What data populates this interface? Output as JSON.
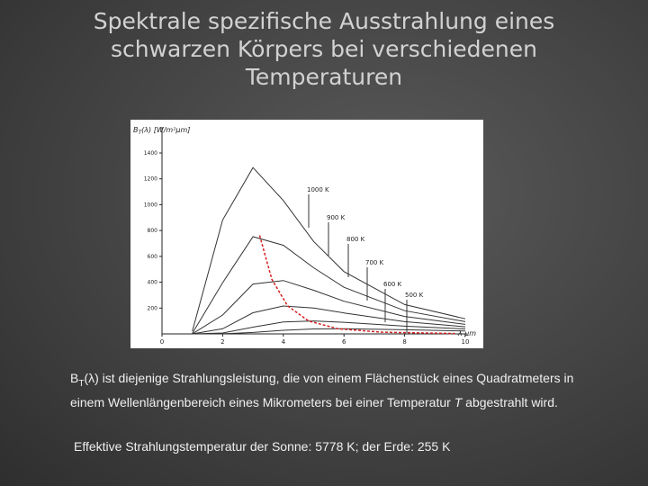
{
  "title": "Spektrale spezifische Ausstrahlung eines schwarzen Körpers bei verschiedenen Temperaturen",
  "chart_data": {
    "type": "line",
    "ylabel": [
      "B",
      "T",
      "(λ)  [W/m²µm]"
    ],
    "xlabel": "λ  µm",
    "x": [
      1,
      2,
      3,
      4,
      5,
      6,
      8,
      10
    ],
    "xlim": [
      0,
      10
    ],
    "xticks": [
      0,
      2,
      4,
      6,
      8,
      10
    ],
    "ylim": [
      0,
      1400
    ],
    "yticks": [
      200,
      400,
      600,
      800,
      1000,
      1200,
      1400
    ],
    "series": [
      {
        "name": "1000 K",
        "color": "#333333",
        "values": [
          21,
          882,
          1287,
          1032,
          715,
          482,
          227,
          117
        ]
      },
      {
        "name": "900 K",
        "color": "#333333",
        "values": [
          4,
          396,
          752,
          686,
          512,
          361,
          180,
          95
        ]
      },
      {
        "name": "800 K",
        "color": "#333333",
        "values": [
          1,
          146,
          386,
          413,
          338,
          253,
          135,
          74
        ]
      },
      {
        "name": "700 K",
        "color": "#333333",
        "values": [
          0,
          40,
          164,
          216,
          200,
          162,
          95,
          55
        ]
      },
      {
        "name": "600 K",
        "color": "#333333",
        "values": [
          0,
          7,
          52,
          92,
          100,
          90,
          60,
          38
        ]
      },
      {
        "name": "500 K",
        "color": "#333333",
        "values": [
          0,
          1,
          11,
          28,
          38,
          40,
          32,
          22
        ]
      }
    ],
    "peak_line": {
      "color": "#d42020",
      "x": [
        3.22,
        3.62,
        4.14,
        4.83,
        5.8,
        7.25,
        9.66
      ],
      "values": [
        762,
        423,
        217,
        100,
        40,
        13,
        3
      ]
    }
  },
  "body": [
    [
      "B",
      "T",
      "(λ) ist diejenige Strahlungsleistung, die von einem Flächenstück eines Quadratmeters in einem Wellenlängenbereich eines Mikrometers bei einer Temperatur ",
      "T",
      " abgestrahlt wird."
    ],
    [
      "Effektive Strahlungstemperatur der Sonne: 5778 K; der Erde: 255 K"
    ]
  ]
}
